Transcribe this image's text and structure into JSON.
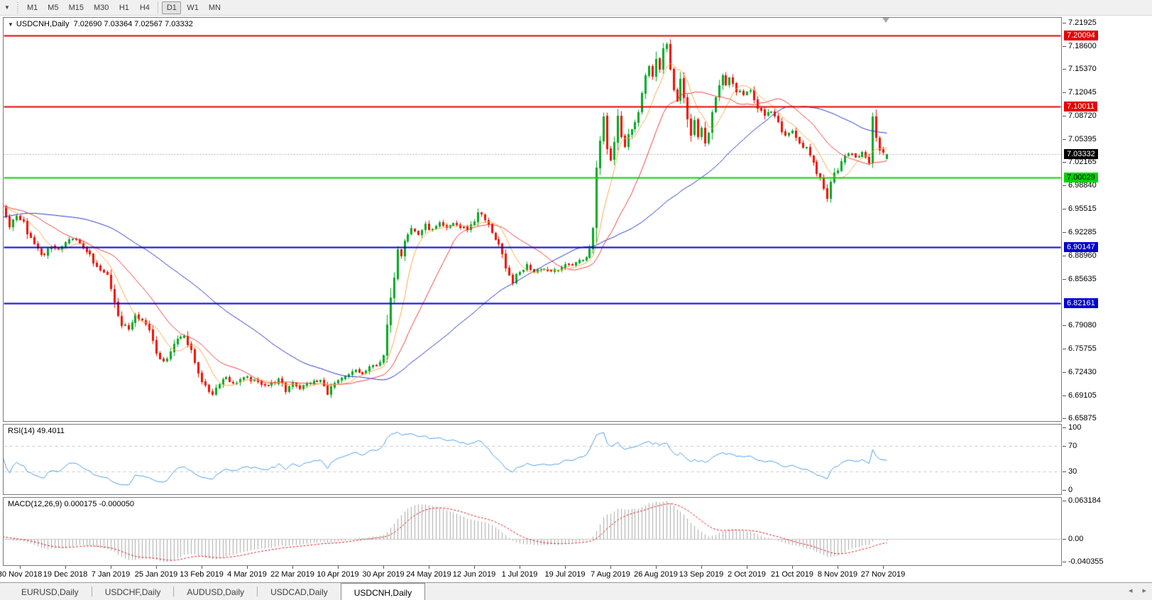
{
  "toolbar": {
    "dropdown_icon": "▼",
    "timeframes": [
      "M1",
      "M5",
      "M15",
      "M30",
      "H1",
      "H4",
      "D1",
      "W1",
      "MN"
    ],
    "active_timeframe": "D1"
  },
  "chart": {
    "collapse_icon": "▼",
    "title_symbol": "USDCNH,Daily",
    "title_values": "7.02690 7.03364 7.02567 7.03332"
  },
  "rsi_panel": {
    "label": "RSI(14) 49.4011"
  },
  "macd_panel": {
    "label": "MACD(12,26,9) 0.000175 -0.000050"
  },
  "tabs": {
    "items": [
      "EURUSD,Daily",
      "USDCHF,Daily",
      "AUDUSD,Daily",
      "USDCAD,Daily",
      "USDCNH,Daily"
    ],
    "active": "USDCNH,Daily",
    "scroll_left_icon": "◂",
    "scroll_right_icon": "▸"
  },
  "colors": {
    "candle_up": "#00aa22",
    "candle_down": "#ee1100",
    "ma_fast": "#ffa94d",
    "ma_mid": "#f03c3c",
    "ma_slow": "#2233cc",
    "level_red": "#e60000",
    "level_green": "#00d400",
    "level_blue": "#0000d0",
    "current_price_line": "#b0b0b0",
    "rsi_line": "#4c9ee8",
    "rsi_guides": "#c8c8c8",
    "macd_hist": "#aaaaaa",
    "macd_signal": "#e02020"
  },
  "chart_data": {
    "type": "candlestick",
    "symbol": "USDCNH",
    "timeframe": "Daily",
    "last_bar": {
      "open": 7.0269,
      "high": 7.03364,
      "low": 7.02567,
      "close": 7.03332
    },
    "y_axis": {
      "max": 7.2263,
      "min": 6.6547,
      "ticks": [
        "7.21925",
        "7.18600",
        "7.15370",
        "7.12045",
        "7.08720",
        "7.05395",
        "7.02165",
        "6.98840",
        "6.95515",
        "6.92285",
        "6.88960",
        "6.85635",
        "6.79080",
        "6.75755",
        "6.72430",
        "6.69105",
        "6.65875"
      ],
      "badges": [
        {
          "label": "7.20094",
          "value": 7.20094,
          "style": "red"
        },
        {
          "label": "7.10011",
          "value": 7.10011,
          "style": "red"
        },
        {
          "label": "7.03332",
          "value": 7.03332,
          "style": "black"
        },
        {
          "label": "7.00029",
          "value": 7.00029,
          "style": "green"
        },
        {
          "label": "6.90147",
          "value": 6.90147,
          "style": "blue"
        },
        {
          "label": "6.82161",
          "value": 6.82161,
          "style": "blue"
        }
      ]
    },
    "levels": [
      {
        "price": 7.20094,
        "style": "red",
        "width": 2
      },
      {
        "price": 7.10011,
        "style": "red",
        "width": 2
      },
      {
        "price": 7.00029,
        "style": "green",
        "width": 2
      },
      {
        "price": 6.90147,
        "style": "blue",
        "width": 2
      },
      {
        "price": 6.82161,
        "style": "blue",
        "width": 2
      }
    ],
    "current_price": 7.03332,
    "x_axis": {
      "labels": [
        "30 Nov 2018",
        "19 Dec 2018",
        "7 Jan 2019",
        "25 Jan 2019",
        "13 Feb 2019",
        "4 Mar 2019",
        "22 Mar 2019",
        "10 Apr 2019",
        "30 Apr 2019",
        "24 May 2019",
        "12 Jun 2019",
        "1 Jul 2019",
        "19 Jul 2019",
        "7 Aug 2019",
        "26 Aug 2019",
        "13 Sep 2019",
        "2 Oct 2019",
        "21 Oct 2019",
        "8 Nov 2019",
        "27 Nov 2019"
      ],
      "first_label_bar": 5,
      "bars_per_label": 13
    },
    "bars_total": 254,
    "pre_anchors": [
      [
        -60,
        6.862
      ],
      [
        -45,
        6.915
      ],
      [
        -30,
        6.958
      ],
      [
        -18,
        6.972
      ],
      [
        -10,
        6.952
      ],
      [
        -4,
        6.962
      ]
    ],
    "anchors": [
      [
        0,
        6.957
      ],
      [
        2,
        6.932
      ],
      [
        4,
        6.948
      ],
      [
        6,
        6.935
      ],
      [
        8,
        6.912
      ],
      [
        10,
        6.898
      ],
      [
        12,
        6.89
      ],
      [
        14,
        6.902
      ],
      [
        16,
        6.898
      ],
      [
        18,
        6.905
      ],
      [
        20,
        6.915
      ],
      [
        22,
        6.905
      ],
      [
        24,
        6.898
      ],
      [
        26,
        6.878
      ],
      [
        28,
        6.868
      ],
      [
        30,
        6.862
      ],
      [
        32,
        6.828
      ],
      [
        34,
        6.792
      ],
      [
        36,
        6.786
      ],
      [
        38,
        6.808
      ],
      [
        40,
        6.798
      ],
      [
        42,
        6.786
      ],
      [
        44,
        6.756
      ],
      [
        46,
        6.738
      ],
      [
        48,
        6.756
      ],
      [
        50,
        6.772
      ],
      [
        52,
        6.778
      ],
      [
        54,
        6.752
      ],
      [
        56,
        6.726
      ],
      [
        58,
        6.702
      ],
      [
        60,
        6.694
      ],
      [
        62,
        6.71
      ],
      [
        64,
        6.718
      ],
      [
        66,
        6.708
      ],
      [
        68,
        6.714
      ],
      [
        70,
        6.716
      ],
      [
        73,
        6.71
      ],
      [
        76,
        6.706
      ],
      [
        79,
        6.713
      ],
      [
        81,
        6.698
      ],
      [
        83,
        6.71
      ],
      [
        85,
        6.702
      ],
      [
        88,
        6.71
      ],
      [
        91,
        6.712
      ],
      [
        93,
        6.695
      ],
      [
        95,
        6.708
      ],
      [
        97,
        6.714
      ],
      [
        99,
        6.72
      ],
      [
        101,
        6.727
      ],
      [
        103,
        6.722
      ],
      [
        105,
        6.73
      ],
      [
        107,
        6.736
      ],
      [
        109,
        6.742
      ],
      [
        110,
        6.788
      ],
      [
        111,
        6.82
      ],
      [
        112,
        6.868
      ],
      [
        113,
        6.902
      ],
      [
        114,
        6.892
      ],
      [
        115,
        6.915
      ],
      [
        117,
        6.928
      ],
      [
        119,
        6.92
      ],
      [
        121,
        6.932
      ],
      [
        123,
        6.926
      ],
      [
        125,
        6.934
      ],
      [
        127,
        6.928
      ],
      [
        129,
        6.936
      ],
      [
        131,
        6.93
      ],
      [
        133,
        6.928
      ],
      [
        135,
        6.938
      ],
      [
        136,
        6.952
      ],
      [
        138,
        6.94
      ],
      [
        140,
        6.924
      ],
      [
        142,
        6.905
      ],
      [
        144,
        6.868
      ],
      [
        146,
        6.853
      ],
      [
        148,
        6.866
      ],
      [
        150,
        6.876
      ],
      [
        152,
        6.868
      ],
      [
        154,
        6.872
      ],
      [
        157,
        6.868
      ],
      [
        160,
        6.874
      ],
      [
        163,
        6.878
      ],
      [
        166,
        6.884
      ],
      [
        168,
        6.896
      ],
      [
        169,
        6.925
      ],
      [
        170,
        7.022
      ],
      [
        171,
        7.052
      ],
      [
        172,
        7.088
      ],
      [
        173,
        7.042
      ],
      [
        174,
        7.028
      ],
      [
        175,
        7.058
      ],
      [
        176,
        7.088
      ],
      [
        177,
        7.062
      ],
      [
        178,
        7.044
      ],
      [
        180,
        7.072
      ],
      [
        182,
        7.092
      ],
      [
        183,
        7.118
      ],
      [
        184,
        7.138
      ],
      [
        185,
        7.158
      ],
      [
        186,
        7.146
      ],
      [
        187,
        7.168
      ],
      [
        188,
        7.152
      ],
      [
        189,
        7.178
      ],
      [
        190,
        7.188
      ],
      [
        191,
        7.158
      ],
      [
        192,
        7.128
      ],
      [
        193,
        7.108
      ],
      [
        194,
        7.138
      ],
      [
        195,
        7.112
      ],
      [
        196,
        7.088
      ],
      [
        197,
        7.062
      ],
      [
        198,
        7.082
      ],
      [
        199,
        7.058
      ],
      [
        200,
        7.072
      ],
      [
        201,
        7.048
      ],
      [
        202,
        7.068
      ],
      [
        203,
        7.092
      ],
      [
        204,
        7.108
      ],
      [
        205,
        7.128
      ],
      [
        206,
        7.145
      ],
      [
        207,
        7.132
      ],
      [
        208,
        7.14
      ],
      [
        210,
        7.124
      ],
      [
        212,
        7.116
      ],
      [
        214,
        7.126
      ],
      [
        216,
        7.102
      ],
      [
        218,
        7.086
      ],
      [
        220,
        7.094
      ],
      [
        222,
        7.076
      ],
      [
        224,
        7.06
      ],
      [
        226,
        7.068
      ],
      [
        228,
        7.05
      ],
      [
        230,
        7.04
      ],
      [
        232,
        7.018
      ],
      [
        234,
        6.998
      ],
      [
        236,
        6.972
      ],
      [
        237,
        6.99
      ],
      [
        238,
        7.006
      ],
      [
        239,
        7.014
      ],
      [
        240,
        7.026
      ],
      [
        242,
        7.036
      ],
      [
        244,
        7.028
      ],
      [
        246,
        7.034
      ],
      [
        248,
        7.027
      ],
      [
        249,
        7.086
      ],
      [
        250,
        7.058
      ],
      [
        251,
        7.04
      ],
      [
        252,
        7.036
      ],
      [
        253,
        7.03332
      ]
    ],
    "moving_averages": [
      {
        "period": 8,
        "color_key": "ma_fast"
      },
      {
        "period": 20,
        "color_key": "ma_mid"
      },
      {
        "period": 55,
        "color_key": "ma_slow"
      }
    ],
    "rsi": {
      "period": 14,
      "value": 49.4011,
      "range": [
        0,
        100
      ],
      "guides": [
        30,
        70
      ],
      "ticks": [
        {
          "label": "100",
          "value": 100
        },
        {
          "label": "70",
          "value": 70
        },
        {
          "label": "30",
          "value": 30
        },
        {
          "label": "0",
          "value": 0
        }
      ]
    },
    "macd": {
      "fast": 12,
      "slow": 26,
      "signal": 9,
      "value": 0.000175,
      "signal_value": -5e-05,
      "axis_max_label": "0.063184",
      "axis_zero_label": "0.00",
      "axis_min_label": "-0.040355"
    }
  }
}
